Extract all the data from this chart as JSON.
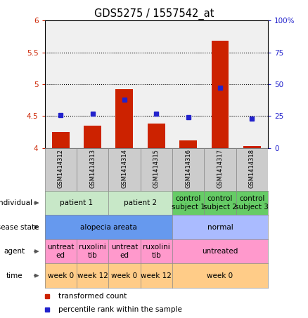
{
  "title": "GDS5275 / 1557542_at",
  "samples": [
    "GSM1414312",
    "GSM1414313",
    "GSM1414314",
    "GSM1414315",
    "GSM1414316",
    "GSM1414317",
    "GSM1414318"
  ],
  "bar_values": [
    4.25,
    4.35,
    4.92,
    4.38,
    4.12,
    5.68,
    4.03
  ],
  "dot_percentiles": [
    26,
    27,
    38,
    27,
    24,
    47,
    23
  ],
  "ylim_left": [
    4.0,
    6.0
  ],
  "ylim_right": [
    0,
    100
  ],
  "yticks_left": [
    4.0,
    4.5,
    5.0,
    5.5,
    6.0
  ],
  "yticks_right": [
    0,
    25,
    50,
    75,
    100
  ],
  "ytick_labels_left": [
    "4",
    "4.5",
    "5",
    "5.5",
    "6"
  ],
  "ytick_labels_right": [
    "0",
    "25",
    "50",
    "75",
    "100%"
  ],
  "hline_positions": [
    4.5,
    5.0,
    5.5
  ],
  "bar_color": "#cc2200",
  "dot_color": "#2222cc",
  "bar_bottom": 4.0,
  "individual_spans": [
    [
      0,
      1,
      "patient 1",
      "#c8e8c8"
    ],
    [
      2,
      3,
      "patient 2",
      "#c8e8c8"
    ],
    [
      4,
      4,
      "control\nsubject 1",
      "#66cc66"
    ],
    [
      5,
      5,
      "control\nsubject 2",
      "#66cc66"
    ],
    [
      6,
      6,
      "control\nsubject 3",
      "#66cc66"
    ]
  ],
  "disease_state_spans": [
    [
      0,
      3,
      "alopecia areata",
      "#6699ee"
    ],
    [
      4,
      6,
      "normal",
      "#aabbff"
    ]
  ],
  "agent_spans": [
    [
      0,
      0,
      "untreat\ned",
      "#ff99cc"
    ],
    [
      1,
      1,
      "ruxolini\ntib",
      "#ff99cc"
    ],
    [
      2,
      2,
      "untreat\ned",
      "#ff99cc"
    ],
    [
      3,
      3,
      "ruxolini\ntib",
      "#ff99cc"
    ],
    [
      4,
      6,
      "untreated",
      "#ff99cc"
    ]
  ],
  "time_spans": [
    [
      0,
      0,
      "week 0",
      "#ffcc88"
    ],
    [
      1,
      1,
      "week 12",
      "#ffcc88"
    ],
    [
      2,
      2,
      "week 0",
      "#ffcc88"
    ],
    [
      3,
      3,
      "week 12",
      "#ffcc88"
    ],
    [
      4,
      6,
      "week 0",
      "#ffcc88"
    ]
  ],
  "row_labels": [
    "individual",
    "disease state",
    "agent",
    "time"
  ],
  "legend_bar_label": "transformed count",
  "legend_dot_label": "percentile rank within the sample",
  "sample_cell_color": "#cccccc"
}
